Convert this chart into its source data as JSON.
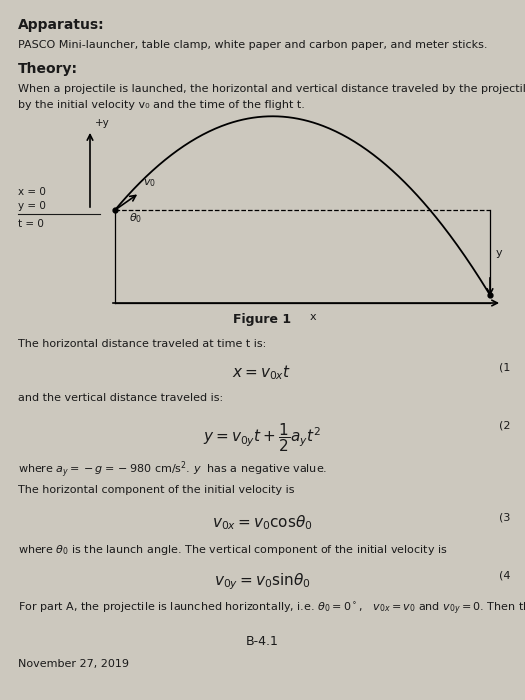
{
  "bg_color": "#ccc8be",
  "text_color": "#1a1a1a",
  "title1": "Apparatus:",
  "apparatus_text": "PASCO Mini-launcher, table clamp, white paper and carbon paper, and meter sticks.",
  "title2": "Theory:",
  "theory_text1": "When a projectile is launched, the horizontal and vertical distance traveled by the projectile is determine",
  "theory_text2": "by the initial velocity v₀ and the time of the flight t.",
  "figure_label": "Figure 1",
  "eq1_num": "(1",
  "text_horiz": "The horizontal distance traveled at time t is:",
  "text_vert": "and the vertical distance traveled is:",
  "eq2_num": "(2",
  "text_ay": "where $a_y = -g = -980$ cm/s$^2$. $y$  has a negative value.",
  "text_horiz_comp": "The horizontal component of the initial velocity is",
  "eq3_num": "(3",
  "text_angle": "where $\\theta_0$ is the launch angle. The vertical component of the initial velocity is",
  "eq4_num": "(4",
  "text_partA": "For part A, the projectile is launched horizontally, i.e. $\\theta_0 = 0^\\circ$,   $v_{0x} = v_0$ and $v_{0y} = 0$. Then the time of th",
  "page_label": "B-4.1",
  "date": "November 27, 2019"
}
